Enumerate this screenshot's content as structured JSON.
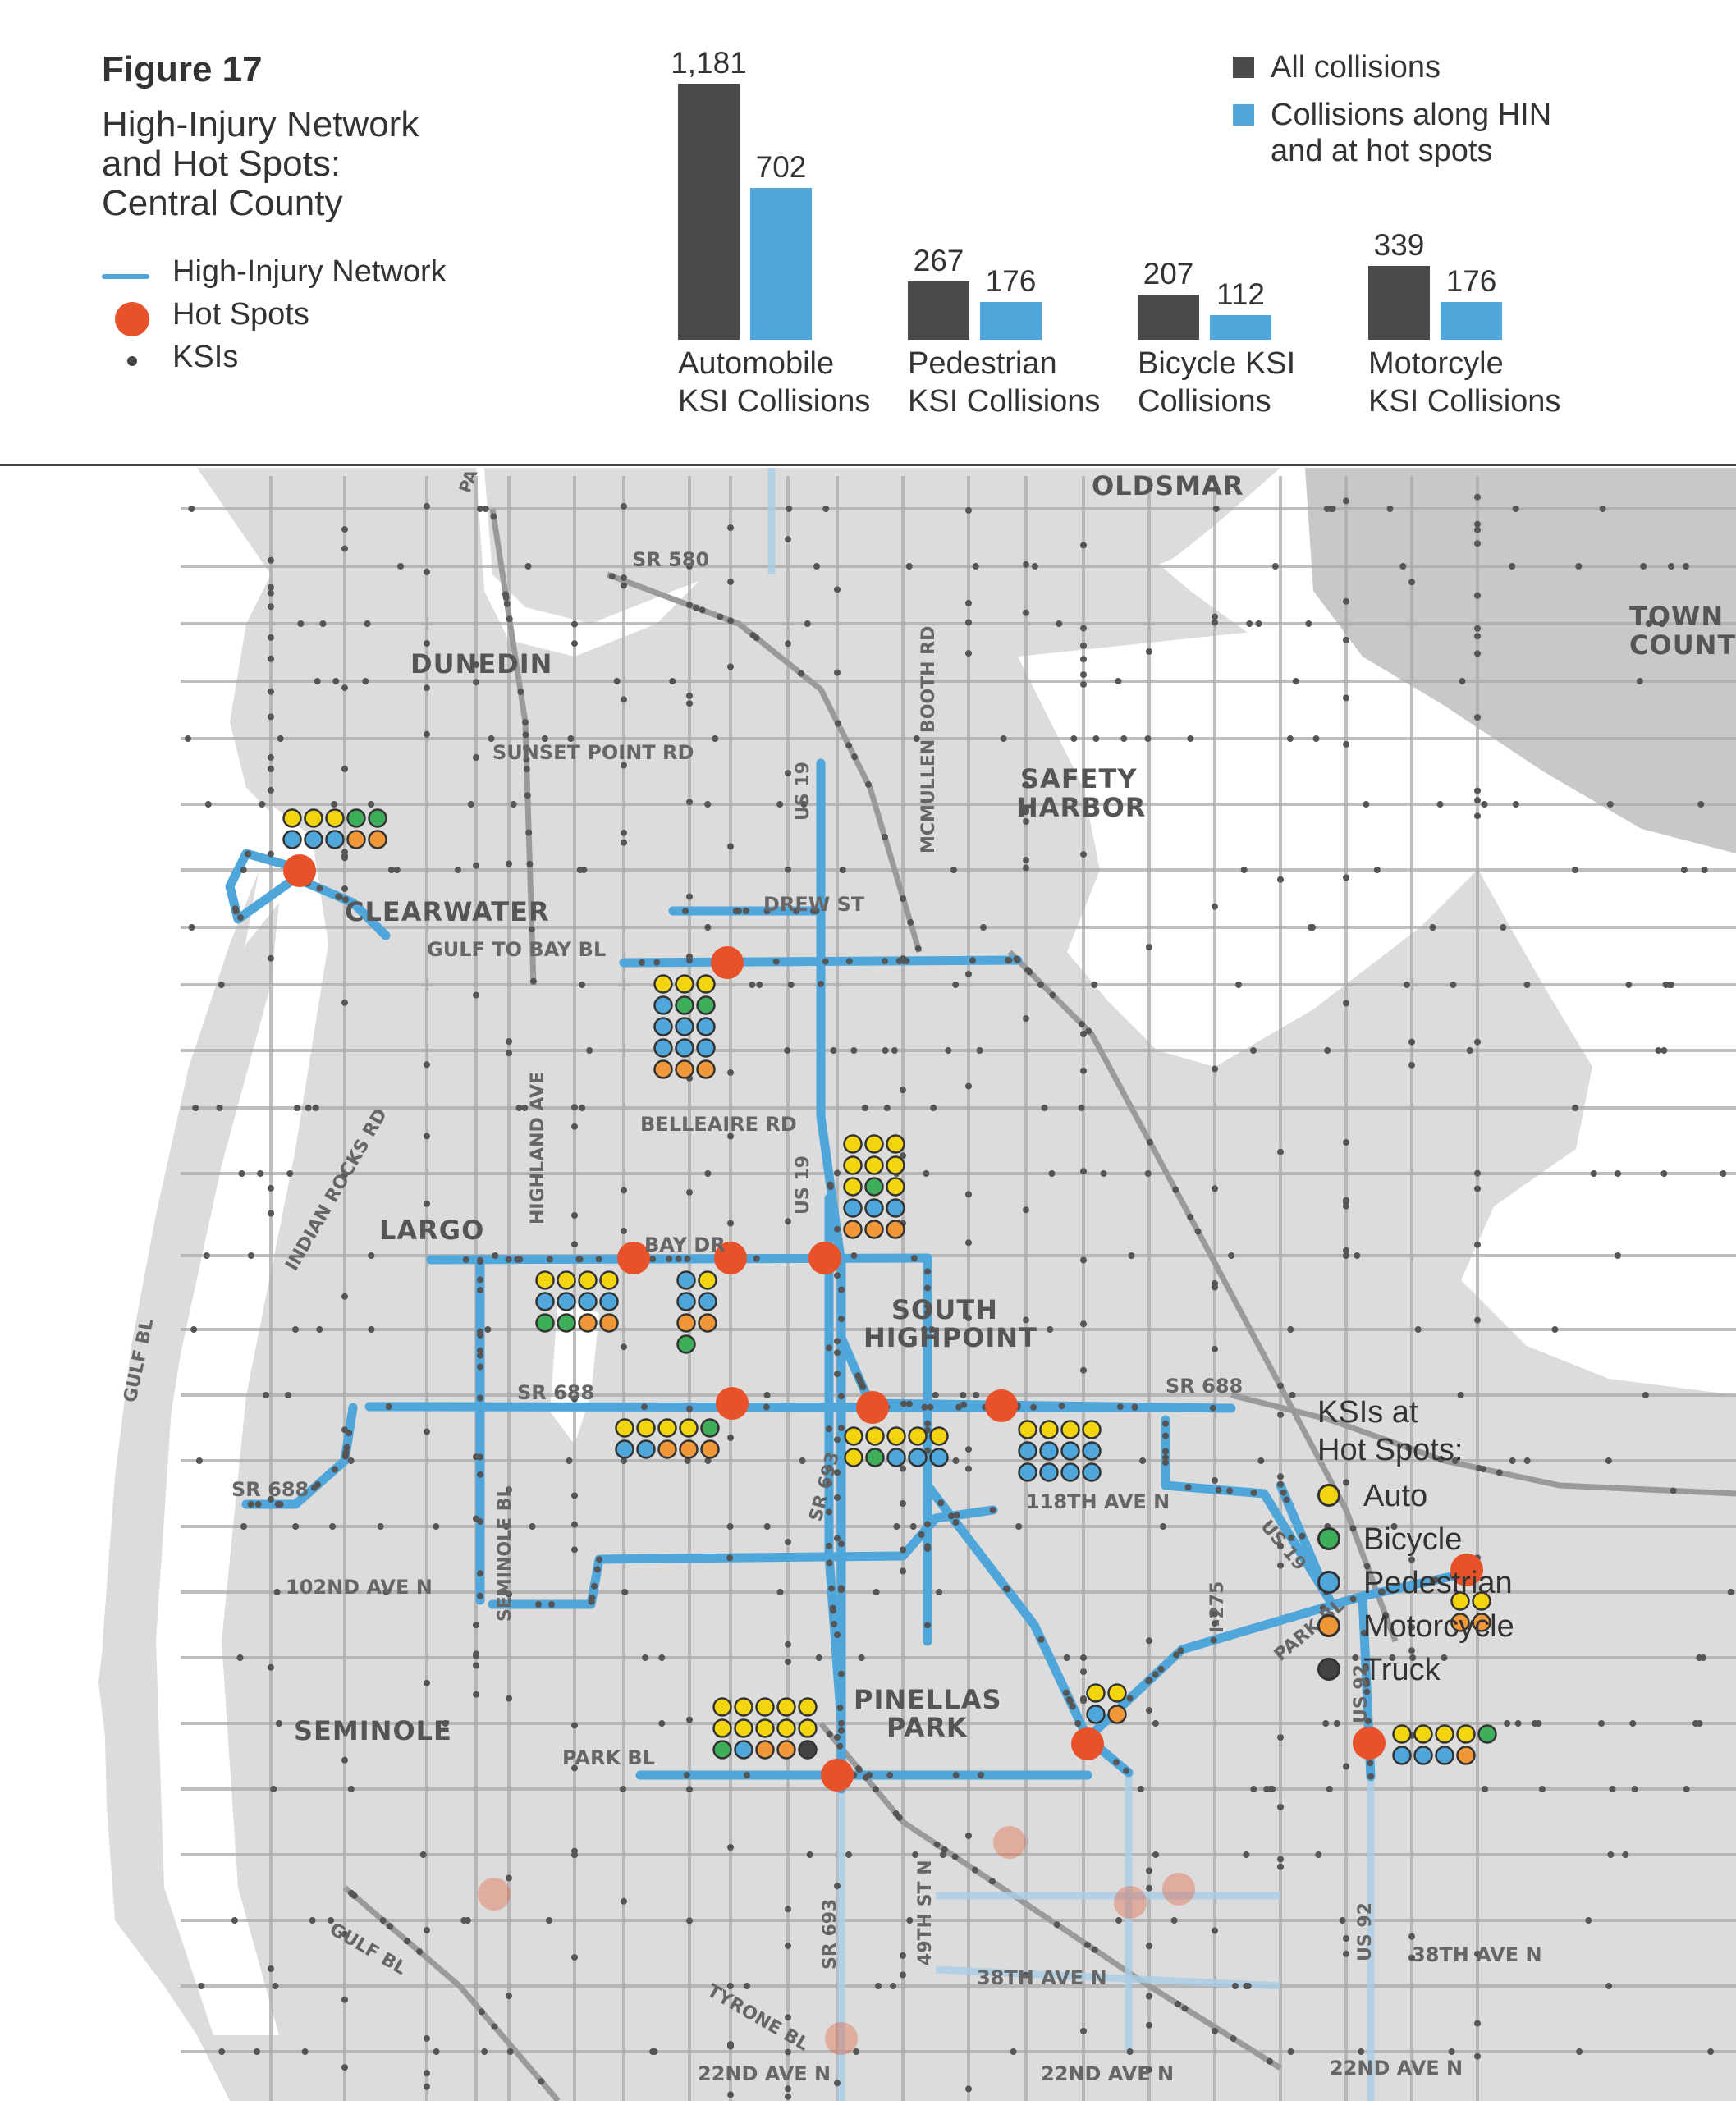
{
  "header": {
    "figure_label": "Figure 17",
    "title_lines": [
      "High-Injury Network",
      "and Hot Spots:",
      "Central County"
    ]
  },
  "legend": {
    "hin": "High-Injury Network",
    "hot_spots": "Hot Spots",
    "ksis": "KSIs"
  },
  "chart_data": {
    "type": "bar",
    "categories": [
      "Automobile KSI Collisions",
      "Pedestrian KSI Collisions",
      "Bicycle KSI Collisions",
      "Motorcyle KSI Collisions"
    ],
    "category_lines": [
      [
        "Automobile",
        "KSI Collisions"
      ],
      [
        "Pedestrian",
        "KSI Collisions"
      ],
      [
        "Bicycle KSI",
        "Collisions"
      ],
      [
        "Motorcyle",
        "KSI Collisions"
      ]
    ],
    "series": [
      {
        "name": "All collisions",
        "values": [
          1181,
          267,
          207,
          339
        ],
        "labels": [
          "1,181",
          "267",
          "207",
          "339"
        ],
        "color": "#4a4a4a"
      },
      {
        "name": "Collisions along HIN and at hot spots",
        "values": [
          702,
          176,
          112,
          176
        ],
        "labels": [
          "702",
          "176",
          "112",
          "176"
        ],
        "color": "#4fa6da"
      }
    ],
    "legend_lines": [
      [
        "All collisions"
      ],
      [
        "Collisions along HIN",
        "and at hot spots"
      ]
    ],
    "ylim": [
      0,
      1181
    ]
  },
  "map": {
    "places": [
      "OLDSMAR",
      "DUNEDIN",
      "SAFETY",
      "HARBOR",
      "CLEARWATER",
      "LARGO",
      "SOUTH",
      "HIGHPOINT",
      "PINELLAS",
      "PARK",
      "SEMINOLE",
      "TOWN 'N",
      "COUNTR"
    ],
    "roads": [
      "SR 580",
      "SUNSET POINT RD",
      "US 19",
      "MCMULLEN BOOTH RD",
      "DREW ST",
      "GULF TO BAY BL",
      "BELLEAIRE RD",
      "US 19",
      "INDIAN ROCKS RD",
      "HIGHLAND AVE",
      "BAY DR",
      "GULF BL",
      "SR 688",
      "SR 688",
      "SR 688",
      "SR 693",
      "118TH AVE N",
      "US 19",
      "102ND AVE N",
      "SEMINOLE BL",
      "I-275",
      "PARK BL",
      "US 92",
      "PARK BL",
      "SR 693",
      "49TH ST N",
      "38TH AVE N",
      "US 92",
      "38TH AVE N",
      "GULF BL",
      "TYRONE BL",
      "22ND AVE N",
      "22ND AVE N",
      "22ND AVE N",
      "PA"
    ],
    "ksi_legend_title": [
      "KSIs at",
      "Hot Spots:"
    ],
    "ksi_types": [
      {
        "label": "Auto",
        "color": "#f2d50f"
      },
      {
        "label": "Bicycle",
        "color": "#3fae5a"
      },
      {
        "label": "Pedestrian",
        "color": "#4fa6da"
      },
      {
        "label": "Motorcycle",
        "color": "#f0973a"
      },
      {
        "label": "Truck",
        "color": "#444444"
      }
    ],
    "colors": {
      "land": "#dcdcdc",
      "water": "#ffffff",
      "road": "#a9a9a9",
      "hin": "#4fa6da",
      "hot_spot": "#e8522a"
    }
  }
}
